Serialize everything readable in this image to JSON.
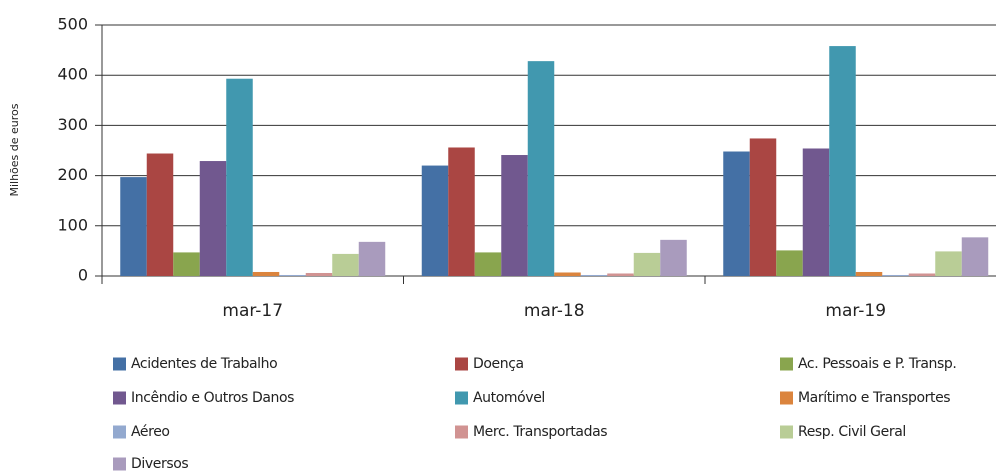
{
  "chart_data": {
    "type": "bar",
    "y_label": "Milhões de euros",
    "categories": [
      "mar-17",
      "mar-18",
      "mar-19"
    ],
    "series": [
      {
        "name": "Acidentes de Trabalho",
        "color": "#4470a5",
        "values": [
          197,
          220,
          248
        ]
      },
      {
        "name": "Doença",
        "color": "#aa4643",
        "values": [
          244,
          256,
          274
        ]
      },
      {
        "name": "Ac. Pessoais e P. Transp.",
        "color": "#89a54e",
        "values": [
          47,
          47,
          51
        ]
      },
      {
        "name": "Incêndio e Outros Danos",
        "color": "#71588f",
        "values": [
          229,
          241,
          254
        ]
      },
      {
        "name": "Automóvel",
        "color": "#4198af",
        "values": [
          393,
          428,
          458
        ]
      },
      {
        "name": "Marítimo e Transportes",
        "color": "#db843d",
        "values": [
          8,
          7,
          8
        ]
      },
      {
        "name": "Aéreo",
        "color": "#93a9cf",
        "values": [
          2,
          2,
          2
        ]
      },
      {
        "name": "Merc. Transportadas",
        "color": "#d19392",
        "values": [
          6,
          5,
          5
        ]
      },
      {
        "name": "Resp. Civil Geral",
        "color": "#b9cd96",
        "values": [
          44,
          46,
          49
        ]
      },
      {
        "name": "Diversos",
        "color": "#a99bbd",
        "values": [
          68,
          72,
          77
        ]
      }
    ],
    "ylim": [
      0,
      500
    ],
    "yticks": [
      0,
      100,
      200,
      300,
      400,
      500
    ],
    "grid": true,
    "legend": "bottom"
  }
}
